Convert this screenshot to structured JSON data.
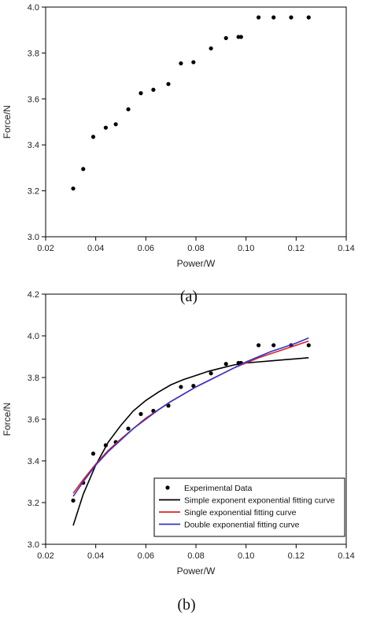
{
  "chart_data": [
    {
      "panel_label": "(a)",
      "type": "scatter",
      "xlabel": "Power/W",
      "ylabel": "Force/N",
      "xlim": [
        0.02,
        0.14
      ],
      "ylim": [
        3.0,
        4.0
      ],
      "x_ticks": [
        "0.02",
        "0.04",
        "0.06",
        "0.08",
        "0.10",
        "0.12",
        "0.14"
      ],
      "y_ticks": [
        "3.0",
        "3.2",
        "3.4",
        "3.6",
        "3.8",
        "4.0"
      ],
      "series": [
        {
          "points": [
            [
              0.031,
              3.21
            ],
            [
              0.035,
              3.295
            ],
            [
              0.039,
              3.435
            ],
            [
              0.044,
              3.475
            ],
            [
              0.048,
              3.49
            ],
            [
              0.053,
              3.555
            ],
            [
              0.058,
              3.625
            ],
            [
              0.063,
              3.64
            ],
            [
              0.069,
              3.665
            ],
            [
              0.074,
              3.755
            ],
            [
              0.079,
              3.76
            ],
            [
              0.086,
              3.82
            ],
            [
              0.092,
              3.865
            ],
            [
              0.097,
              3.87
            ],
            [
              0.098,
              3.87
            ],
            [
              0.105,
              3.955
            ],
            [
              0.111,
              3.955
            ],
            [
              0.118,
              3.955
            ],
            [
              0.125,
              3.955
            ]
          ]
        }
      ]
    },
    {
      "panel_label": "(b)",
      "type": "line",
      "xlabel": "Power/W",
      "ylabel": "Force/N",
      "xlim": [
        0.02,
        0.14
      ],
      "ylim": [
        3.0,
        4.2
      ],
      "x_ticks": [
        "0.02",
        "0.04",
        "0.06",
        "0.08",
        "0.10",
        "0.12",
        "0.14"
      ],
      "y_ticks": [
        "3.0",
        "3.2",
        "3.4",
        "3.6",
        "3.8",
        "4.0",
        "4.2"
      ],
      "legend_position": "bottom-right",
      "series": [
        {
          "name": "Experimental Data",
          "kind": "scatter",
          "color": "#000000",
          "points": [
            [
              0.031,
              3.21
            ],
            [
              0.035,
              3.295
            ],
            [
              0.039,
              3.435
            ],
            [
              0.044,
              3.475
            ],
            [
              0.048,
              3.49
            ],
            [
              0.053,
              3.555
            ],
            [
              0.058,
              3.625
            ],
            [
              0.063,
              3.64
            ],
            [
              0.069,
              3.665
            ],
            [
              0.074,
              3.755
            ],
            [
              0.079,
              3.76
            ],
            [
              0.086,
              3.82
            ],
            [
              0.092,
              3.865
            ],
            [
              0.097,
              3.87
            ],
            [
              0.098,
              3.87
            ],
            [
              0.105,
              3.955
            ],
            [
              0.111,
              3.955
            ],
            [
              0.118,
              3.955
            ],
            [
              0.125,
              3.955
            ]
          ]
        },
        {
          "name": "Simple exponent exponential fitting curve",
          "kind": "line",
          "color": "#000000",
          "points": [
            [
              0.031,
              3.09
            ],
            [
              0.035,
              3.24
            ],
            [
              0.04,
              3.38
            ],
            [
              0.045,
              3.49
            ],
            [
              0.05,
              3.57
            ],
            [
              0.055,
              3.64
            ],
            [
              0.06,
              3.69
            ],
            [
              0.065,
              3.73
            ],
            [
              0.07,
              3.765
            ],
            [
              0.075,
              3.79
            ],
            [
              0.08,
              3.81
            ],
            [
              0.085,
              3.83
            ],
            [
              0.09,
              3.845
            ],
            [
              0.095,
              3.86
            ],
            [
              0.1,
              3.87
            ],
            [
              0.105,
              3.875
            ],
            [
              0.11,
              3.88
            ],
            [
              0.115,
              3.885
            ],
            [
              0.12,
              3.89
            ],
            [
              0.125,
              3.895
            ]
          ]
        },
        {
          "name": "Single exponential fitting curve",
          "kind": "line",
          "color": "#dd2222",
          "points": [
            [
              0.031,
              3.245
            ],
            [
              0.035,
              3.31
            ],
            [
              0.04,
              3.385
            ],
            [
              0.045,
              3.45
            ],
            [
              0.05,
              3.505
            ],
            [
              0.055,
              3.555
            ],
            [
              0.06,
              3.605
            ],
            [
              0.065,
              3.645
            ],
            [
              0.07,
              3.685
            ],
            [
              0.075,
              3.72
            ],
            [
              0.08,
              3.755
            ],
            [
              0.085,
              3.785
            ],
            [
              0.09,
              3.815
            ],
            [
              0.095,
              3.845
            ],
            [
              0.1,
              3.87
            ],
            [
              0.105,
              3.895
            ],
            [
              0.11,
              3.915
            ],
            [
              0.115,
              3.935
            ],
            [
              0.12,
              3.955
            ],
            [
              0.125,
              3.975
            ]
          ]
        },
        {
          "name": "Double exponential fitting curve",
          "kind": "line",
          "color": "#3333cc",
          "points": [
            [
              0.031,
              3.23
            ],
            [
              0.035,
              3.3
            ],
            [
              0.04,
              3.38
            ],
            [
              0.045,
              3.445
            ],
            [
              0.05,
              3.5
            ],
            [
              0.055,
              3.555
            ],
            [
              0.06,
              3.6
            ],
            [
              0.065,
              3.645
            ],
            [
              0.07,
              3.685
            ],
            [
              0.075,
              3.72
            ],
            [
              0.08,
              3.755
            ],
            [
              0.085,
              3.785
            ],
            [
              0.09,
              3.815
            ],
            [
              0.095,
              3.845
            ],
            [
              0.1,
              3.875
            ],
            [
              0.105,
              3.9
            ],
            [
              0.11,
              3.925
            ],
            [
              0.115,
              3.945
            ],
            [
              0.12,
              3.965
            ],
            [
              0.125,
              3.99
            ]
          ]
        }
      ]
    }
  ]
}
